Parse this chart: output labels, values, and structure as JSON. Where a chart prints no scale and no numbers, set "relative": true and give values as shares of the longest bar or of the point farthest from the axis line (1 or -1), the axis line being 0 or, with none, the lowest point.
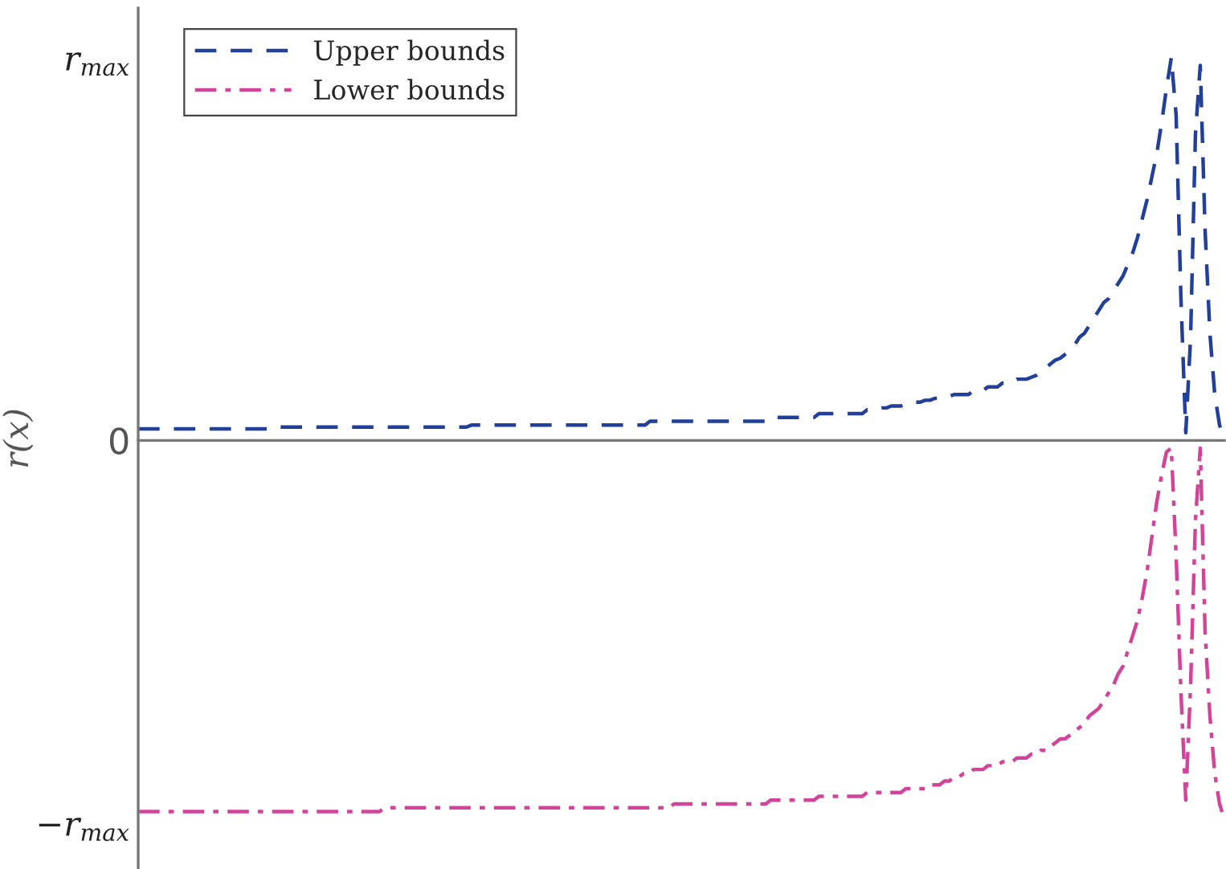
{
  "chart_data": {
    "type": "line",
    "ylabel": "r(x)",
    "categories": [
      null,
      null,
      null,
      null,
      null,
      null,
      null,
      null,
      null,
      null,
      null,
      null,
      null,
      null,
      null,
      null,
      null,
      null,
      null,
      null,
      null,
      null,
      null,
      null,
      null,
      null,
      null,
      null,
      null,
      null,
      null,
      null,
      null,
      null,
      null,
      null,
      null,
      null,
      null,
      null,
      null,
      null,
      null,
      null,
      null,
      null,
      null,
      null,
      null,
      null,
      null,
      null,
      null,
      null,
      null,
      null,
      null,
      null,
      null,
      null,
      null,
      null,
      null,
      null,
      null,
      null,
      null,
      null,
      null,
      null,
      null,
      null,
      null,
      null,
      null,
      null,
      null,
      null,
      null,
      null,
      null,
      null,
      null,
      null,
      null,
      null,
      null,
      null,
      null,
      null,
      null,
      null,
      null,
      null,
      null,
      null,
      null,
      null,
      null,
      null,
      null,
      null,
      null,
      null,
      null,
      null,
      null,
      null,
      null,
      null,
      null,
      null,
      null,
      null,
      null,
      null,
      null,
      null,
      null,
      null,
      null,
      null,
      null,
      null,
      null,
      null,
      null,
      null,
      null,
      null,
      null,
      null,
      null,
      null,
      null,
      null,
      null,
      null,
      null,
      null,
      null,
      null,
      null,
      null,
      null,
      null,
      null,
      null,
      null,
      null,
      null,
      null,
      null,
      null,
      null,
      null,
      null,
      null,
      null,
      null,
      null,
      null,
      null,
      null,
      null,
      null,
      null,
      null,
      null,
      null,
      null,
      null,
      null,
      null,
      null,
      null,
      null,
      null,
      null,
      null,
      null,
      null,
      null,
      null,
      null,
      null,
      null,
      null,
      null,
      null,
      null,
      null,
      null,
      null,
      null,
      null,
      null,
      null,
      null,
      null,
      null,
      null,
      null,
      null,
      null,
      null,
      null,
      null,
      null,
      null,
      null,
      null,
      null,
      null,
      null,
      null,
      null,
      null,
      null,
      null,
      null,
      null,
      null,
      null,
      null,
      null
    ],
    "series": [
      {
        "name": "Upper bounds",
        "color": "#22409a",
        "line_style": "dashed",
        "values": [
          0.03,
          0.03,
          0.03,
          0.03,
          0.03,
          0.03,
          0.03,
          0.03,
          0.03,
          0.03,
          0.03,
          0.03,
          0.03,
          0.03,
          0.03,
          0.03,
          0.03,
          0.03,
          0.03,
          0.03,
          0.03,
          0.03,
          0.03,
          0.03,
          0.03,
          0.03,
          0.03,
          0.03,
          0.03,
          0.035,
          0.035,
          0.035,
          0.035,
          0.035,
          0.035,
          0.035,
          0.035,
          0.035,
          0.035,
          0.035,
          0.035,
          0.035,
          0.035,
          0.035,
          0.035,
          0.035,
          0.035,
          0.035,
          0.035,
          0.035,
          0.035,
          0.035,
          0.035,
          0.035,
          0.035,
          0.035,
          0.035,
          0.035,
          0.035,
          0.035,
          0.035,
          0.035,
          0.035,
          0.035,
          0.035,
          0.035,
          0.035,
          0.035,
          0.035,
          0.04,
          0.04,
          0.04,
          0.04,
          0.04,
          0.04,
          0.04,
          0.04,
          0.04,
          0.04,
          0.04,
          0.04,
          0.04,
          0.04,
          0.04,
          0.04,
          0.04,
          0.04,
          0.04,
          0.04,
          0.04,
          0.04,
          0.04,
          0.04,
          0.04,
          0.04,
          0.04,
          0.04,
          0.04,
          0.04,
          0.04,
          0.04,
          0.04,
          0.04,
          0.04,
          0.04,
          0.04,
          0.05,
          0.05,
          0.05,
          0.05,
          0.05,
          0.05,
          0.05,
          0.05,
          0.05,
          0.05,
          0.05,
          0.05,
          0.05,
          0.05,
          0.05,
          0.05,
          0.05,
          0.05,
          0.05,
          0.05,
          0.05,
          0.05,
          0.05,
          0.05,
          0.05,
          0.06,
          0.06,
          0.06,
          0.06,
          0.06,
          0.06,
          0.06,
          0.06,
          0.06,
          0.06,
          0.07,
          0.07,
          0.07,
          0.07,
          0.07,
          0.07,
          0.07,
          0.07,
          0.07,
          0.07,
          0.08,
          0.08,
          0.08,
          0.085,
          0.085,
          0.09,
          0.09,
          0.09,
          0.095,
          0.095,
          0.1,
          0.1,
          0.105,
          0.105,
          0.11,
          0.11,
          0.115,
          0.115,
          0.12,
          0.12,
          0.12,
          0.12,
          0.13,
          0.13,
          0.13,
          0.14,
          0.14,
          0.14,
          0.15,
          0.15,
          0.15,
          0.16,
          0.16,
          0.16,
          0.165,
          0.17,
          0.18,
          0.19,
          0.2,
          0.21,
          0.215,
          0.225,
          0.235,
          0.25,
          0.27,
          0.28,
          0.3,
          0.32,
          0.34,
          0.36,
          0.37,
          0.39,
          0.41,
          0.43,
          0.46,
          0.49,
          0.53,
          0.58,
          0.63,
          0.69,
          0.75,
          0.83,
          0.92,
          1.0,
          0.85,
          0.37,
          0.02,
          0.27,
          0.8,
          0.98,
          0.55,
          0.28,
          0.12,
          0.04,
          0.0
        ]
      },
      {
        "name": "Lower bounds",
        "color": "#d2449a",
        "line_style": "dashdot",
        "values": [
          -0.97,
          -0.97,
          -0.97,
          -0.97,
          -0.97,
          -0.97,
          -0.97,
          -0.97,
          -0.97,
          -0.97,
          -0.97,
          -0.97,
          -0.97,
          -0.97,
          -0.97,
          -0.97,
          -0.97,
          -0.97,
          -0.97,
          -0.97,
          -0.97,
          -0.97,
          -0.97,
          -0.97,
          -0.97,
          -0.97,
          -0.97,
          -0.97,
          -0.97,
          -0.97,
          -0.97,
          -0.97,
          -0.97,
          -0.97,
          -0.97,
          -0.97,
          -0.97,
          -0.97,
          -0.97,
          -0.97,
          -0.97,
          -0.97,
          -0.97,
          -0.97,
          -0.97,
          -0.97,
          -0.97,
          -0.97,
          -0.97,
          -0.97,
          -0.97,
          -0.96,
          -0.96,
          -0.96,
          -0.96,
          -0.96,
          -0.96,
          -0.96,
          -0.96,
          -0.96,
          -0.96,
          -0.96,
          -0.96,
          -0.96,
          -0.96,
          -0.96,
          -0.96,
          -0.96,
          -0.96,
          -0.96,
          -0.96,
          -0.96,
          -0.96,
          -0.96,
          -0.96,
          -0.96,
          -0.96,
          -0.96,
          -0.96,
          -0.96,
          -0.96,
          -0.96,
          -0.96,
          -0.96,
          -0.96,
          -0.96,
          -0.96,
          -0.96,
          -0.96,
          -0.96,
          -0.96,
          -0.96,
          -0.96,
          -0.96,
          -0.96,
          -0.96,
          -0.96,
          -0.96,
          -0.96,
          -0.96,
          -0.96,
          -0.96,
          -0.96,
          -0.96,
          -0.96,
          -0.96,
          -0.96,
          -0.96,
          -0.96,
          -0.96,
          -0.96,
          -0.95,
          -0.95,
          -0.95,
          -0.95,
          -0.95,
          -0.95,
          -0.95,
          -0.95,
          -0.95,
          -0.95,
          -0.95,
          -0.95,
          -0.95,
          -0.95,
          -0.95,
          -0.95,
          -0.95,
          -0.95,
          -0.95,
          -0.95,
          -0.94,
          -0.94,
          -0.94,
          -0.94,
          -0.94,
          -0.94,
          -0.94,
          -0.94,
          -0.94,
          -0.94,
          -0.93,
          -0.93,
          -0.93,
          -0.93,
          -0.93,
          -0.93,
          -0.93,
          -0.93,
          -0.93,
          -0.93,
          -0.92,
          -0.92,
          -0.92,
          -0.92,
          -0.92,
          -0.92,
          -0.92,
          -0.92,
          -0.91,
          -0.91,
          -0.91,
          -0.91,
          -0.91,
          -0.9,
          -0.9,
          -0.9,
          -0.89,
          -0.89,
          -0.88,
          -0.88,
          -0.87,
          -0.87,
          -0.86,
          -0.86,
          -0.86,
          -0.85,
          -0.85,
          -0.85,
          -0.84,
          -0.84,
          -0.84,
          -0.83,
          -0.83,
          -0.83,
          -0.82,
          -0.82,
          -0.81,
          -0.81,
          -0.8,
          -0.79,
          -0.78,
          -0.78,
          -0.77,
          -0.76,
          -0.75,
          -0.74,
          -0.72,
          -0.71,
          -0.7,
          -0.68,
          -0.66,
          -0.64,
          -0.61,
          -0.59,
          -0.55,
          -0.51,
          -0.47,
          -0.41,
          -0.34,
          -0.25,
          -0.16,
          -0.09,
          -0.03,
          -0.02,
          -0.3,
          -0.66,
          -0.94,
          -0.64,
          -0.21,
          -0.02,
          -0.5,
          -0.72,
          -0.87,
          -0.95,
          -0.99
        ]
      }
    ],
    "relative": true,
    "annotations": [
      "−r$_{max}$",
      "0",
      "r$_{max}$"
    ],
    "tick_labels": "y",
    "grid": false,
    "legend": "top left"
  }
}
